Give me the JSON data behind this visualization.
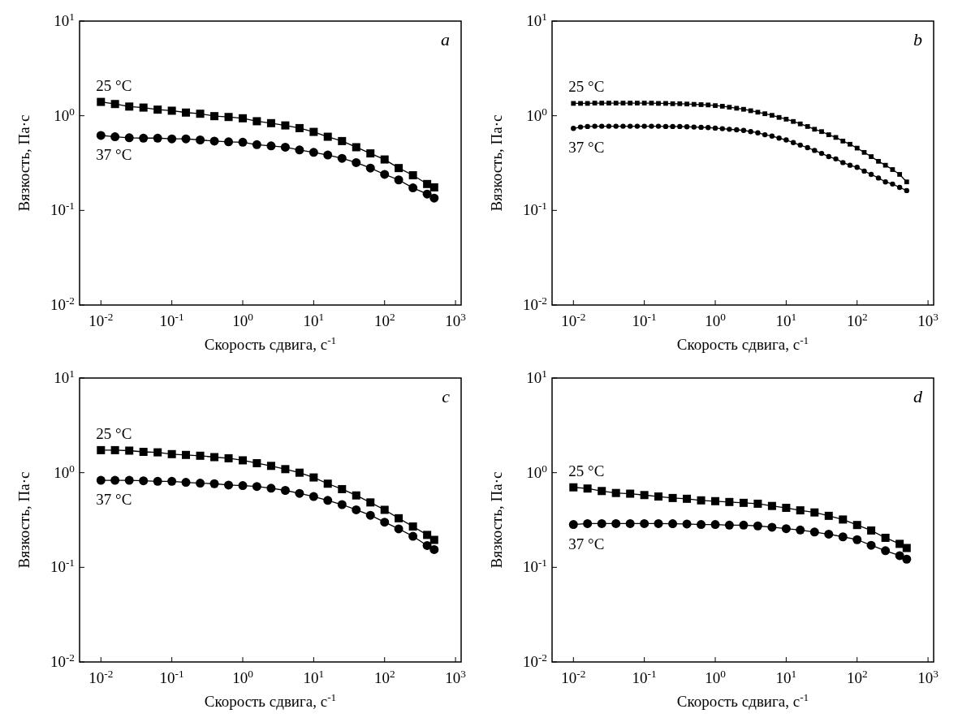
{
  "chart_data": [
    {
      "type": "line",
      "annotations": [
        "a"
      ],
      "xlabel": "Скорость сдвига, с$^{-1}$",
      "ylabel": "Вязкость, Па·с",
      "log": "xy",
      "grid": false,
      "line_style": "solid",
      "xlim": [
        0.005,
        1200
      ],
      "ylim": [
        0.01,
        10
      ],
      "xticks": [
        {
          "value": 0.01,
          "label": "10$^{-2}$"
        },
        {
          "value": 0.1,
          "label": "10$^{-1}$"
        },
        {
          "value": 1,
          "label": "10$^{0}$"
        },
        {
          "value": 10,
          "label": "10$^{1}$"
        },
        {
          "value": 100,
          "label": "10$^{2}$"
        },
        {
          "value": 1000,
          "label": "10$^{3}$"
        }
      ],
      "yticks": [
        {
          "value": 0.01,
          "label": "10$^{-2}$"
        },
        {
          "value": 0.1,
          "label": "10$^{-1}$"
        },
        {
          "value": 1,
          "label": "10$^{0}$"
        },
        {
          "value": 10,
          "label": "10$^{1}$"
        }
      ],
      "x": [
        0.01,
        0.0158,
        0.0251,
        0.0398,
        0.0631,
        0.1,
        0.158,
        0.251,
        0.398,
        0.631,
        1,
        1.58,
        2.51,
        3.98,
        6.31,
        10,
        15.8,
        25.1,
        39.8,
        63.1,
        100,
        158,
        251,
        398,
        500
      ],
      "series": [
        {
          "name": "25 °C",
          "color": "#000000",
          "marker": "square",
          "values": [
            1.4,
            1.33,
            1.25,
            1.22,
            1.16,
            1.13,
            1.08,
            1.05,
            0.99,
            0.97,
            0.94,
            0.875,
            0.835,
            0.79,
            0.74,
            0.675,
            0.6,
            0.54,
            0.465,
            0.4,
            0.345,
            0.28,
            0.235,
            0.19,
            0.175
          ]
        },
        {
          "name": "37 °C",
          "color": "#000000",
          "marker": "circle",
          "values": [
            0.62,
            0.6,
            0.585,
            0.58,
            0.58,
            0.57,
            0.57,
            0.555,
            0.54,
            0.53,
            0.525,
            0.495,
            0.48,
            0.465,
            0.435,
            0.41,
            0.385,
            0.355,
            0.32,
            0.28,
            0.24,
            0.21,
            0.173,
            0.149,
            0.135
          ]
        }
      ]
    },
    {
      "type": "line",
      "annotations": [
        "b"
      ],
      "xlabel": "Скорость сдвига, с$^{-1}$",
      "ylabel": "Вязкость, Па·с",
      "log": "xy",
      "grid": false,
      "line_style": "solid",
      "xlim": [
        0.005,
        1200
      ],
      "ylim": [
        0.01,
        10
      ],
      "xticks": [
        {
          "value": 0.01,
          "label": "10$^{-2}$"
        },
        {
          "value": 0.1,
          "label": "10$^{-1}$"
        },
        {
          "value": 1,
          "label": "10$^{0}$"
        },
        {
          "value": 10,
          "label": "10$^{1}$"
        },
        {
          "value": 100,
          "label": "10$^{2}$"
        },
        {
          "value": 1000,
          "label": "10$^{3}$"
        }
      ],
      "yticks": [
        {
          "value": 0.01,
          "label": "10$^{-2}$"
        },
        {
          "value": 0.1,
          "label": "10$^{-1}$"
        },
        {
          "value": 1,
          "label": "10$^{0}$"
        },
        {
          "value": 10,
          "label": "10$^{1}$"
        }
      ],
      "x": [
        0.01,
        0.0126,
        0.0158,
        0.02,
        0.0251,
        0.0316,
        0.0398,
        0.0501,
        0.0631,
        0.0794,
        0.1,
        0.126,
        0.158,
        0.2,
        0.251,
        0.316,
        0.398,
        0.501,
        0.631,
        0.794,
        1,
        1.26,
        1.58,
        2,
        2.51,
        3.16,
        3.98,
        5.01,
        6.31,
        7.94,
        10,
        12.6,
        15.8,
        20,
        25.1,
        31.6,
        39.8,
        50.1,
        63.1,
        79.4,
        100,
        126,
        158,
        200,
        251,
        316,
        398,
        500
      ],
      "series": [
        {
          "name": "25 °C",
          "color": "#000000",
          "marker": "square",
          "values": [
            1.35,
            1.35,
            1.35,
            1.36,
            1.36,
            1.36,
            1.36,
            1.36,
            1.36,
            1.36,
            1.36,
            1.36,
            1.35,
            1.35,
            1.34,
            1.34,
            1.33,
            1.32,
            1.31,
            1.3,
            1.28,
            1.26,
            1.23,
            1.2,
            1.17,
            1.13,
            1.09,
            1.05,
            1.01,
            0.96,
            0.92,
            0.87,
            0.82,
            0.77,
            0.72,
            0.68,
            0.63,
            0.59,
            0.54,
            0.5,
            0.455,
            0.41,
            0.37,
            0.33,
            0.3,
            0.27,
            0.24,
            0.2
          ]
        },
        {
          "name": "37 °C",
          "color": "#000000",
          "marker": "circle",
          "values": [
            0.735,
            0.76,
            0.77,
            0.775,
            0.775,
            0.775,
            0.775,
            0.775,
            0.775,
            0.775,
            0.775,
            0.775,
            0.775,
            0.77,
            0.77,
            0.77,
            0.765,
            0.76,
            0.755,
            0.75,
            0.74,
            0.73,
            0.72,
            0.71,
            0.7,
            0.68,
            0.66,
            0.63,
            0.61,
            0.58,
            0.555,
            0.52,
            0.49,
            0.46,
            0.43,
            0.4,
            0.37,
            0.35,
            0.32,
            0.3,
            0.285,
            0.26,
            0.24,
            0.22,
            0.2,
            0.19,
            0.175,
            0.162
          ]
        }
      ]
    },
    {
      "type": "line",
      "annotations": [
        "c"
      ],
      "xlabel": "Скорость сдвига, с$^{-1}$",
      "ylabel": "Вязкость, Па·с",
      "log": "xy",
      "grid": false,
      "line_style": "solid",
      "xlim": [
        0.005,
        1200
      ],
      "ylim": [
        0.01,
        10
      ],
      "xticks": [
        {
          "value": 0.01,
          "label": "10$^{-2}$"
        },
        {
          "value": 0.1,
          "label": "10$^{-1}$"
        },
        {
          "value": 1,
          "label": "10$^{0}$"
        },
        {
          "value": 10,
          "label": "10$^{1}$"
        },
        {
          "value": 100,
          "label": "10$^{2}$"
        },
        {
          "value": 1000,
          "label": "10$^{3}$"
        }
      ],
      "yticks": [
        {
          "value": 0.01,
          "label": "10$^{-2}$"
        },
        {
          "value": 0.1,
          "label": "10$^{-1}$"
        },
        {
          "value": 1,
          "label": "10$^{0}$"
        },
        {
          "value": 10,
          "label": "10$^{1}$"
        }
      ],
      "x": [
        0.01,
        0.0158,
        0.0251,
        0.0398,
        0.0631,
        0.1,
        0.158,
        0.251,
        0.398,
        0.631,
        1,
        1.58,
        2.51,
        3.98,
        6.31,
        10,
        15.8,
        25.1,
        39.8,
        63.1,
        100,
        158,
        251,
        398,
        500
      ],
      "series": [
        {
          "name": "25 °C",
          "color": "#000000",
          "marker": "square",
          "values": [
            1.73,
            1.73,
            1.71,
            1.66,
            1.64,
            1.57,
            1.54,
            1.51,
            1.46,
            1.42,
            1.35,
            1.26,
            1.18,
            1.09,
            1.0,
            0.89,
            0.765,
            0.67,
            0.575,
            0.485,
            0.405,
            0.33,
            0.27,
            0.22,
            0.195
          ]
        },
        {
          "name": "37 °C",
          "color": "#000000",
          "marker": "circle",
          "values": [
            0.83,
            0.83,
            0.83,
            0.82,
            0.81,
            0.81,
            0.79,
            0.775,
            0.765,
            0.74,
            0.73,
            0.715,
            0.685,
            0.65,
            0.605,
            0.56,
            0.51,
            0.46,
            0.405,
            0.355,
            0.3,
            0.255,
            0.213,
            0.17,
            0.154
          ]
        }
      ]
    },
    {
      "type": "line",
      "annotations": [
        "d"
      ],
      "xlabel": "Скорость сдвига, с$^{-1}$",
      "ylabel": "Вязкость, Па·с",
      "log": "xy",
      "grid": false,
      "line_style": "solid",
      "xlim": [
        0.005,
        1200
      ],
      "ylim": [
        0.01,
        10
      ],
      "xticks": [
        {
          "value": 0.01,
          "label": "10$^{-2}$"
        },
        {
          "value": 0.1,
          "label": "10$^{-1}$"
        },
        {
          "value": 1,
          "label": "10$^{0}$"
        },
        {
          "value": 10,
          "label": "10$^{1}$"
        },
        {
          "value": 100,
          "label": "10$^{2}$"
        },
        {
          "value": 1000,
          "label": "10$^{3}$"
        }
      ],
      "yticks": [
        {
          "value": 0.01,
          "label": "10$^{-2}$"
        },
        {
          "value": 0.1,
          "label": "10$^{-1}$"
        },
        {
          "value": 1,
          "label": "10$^{0}$"
        },
        {
          "value": 10,
          "label": "10$^{1}$"
        }
      ],
      "x": [
        0.01,
        0.0158,
        0.0251,
        0.0398,
        0.0631,
        0.1,
        0.158,
        0.251,
        0.398,
        0.631,
        1,
        1.58,
        2.51,
        3.98,
        6.31,
        10,
        15.8,
        25.1,
        39.8,
        63.1,
        100,
        158,
        251,
        398,
        500
      ],
      "series": [
        {
          "name": "25 °C",
          "color": "#000000",
          "marker": "square",
          "values": [
            0.7,
            0.68,
            0.64,
            0.61,
            0.6,
            0.58,
            0.56,
            0.54,
            0.53,
            0.51,
            0.5,
            0.49,
            0.48,
            0.47,
            0.445,
            0.425,
            0.4,
            0.38,
            0.35,
            0.32,
            0.28,
            0.245,
            0.205,
            0.177,
            0.16
          ]
        },
        {
          "name": "37 °C",
          "color": "#000000",
          "marker": "circle",
          "values": [
            0.283,
            0.29,
            0.29,
            0.29,
            0.29,
            0.29,
            0.29,
            0.289,
            0.287,
            0.283,
            0.283,
            0.279,
            0.279,
            0.274,
            0.265,
            0.256,
            0.248,
            0.236,
            0.224,
            0.21,
            0.196,
            0.171,
            0.15,
            0.133,
            0.122
          ]
        }
      ]
    }
  ]
}
